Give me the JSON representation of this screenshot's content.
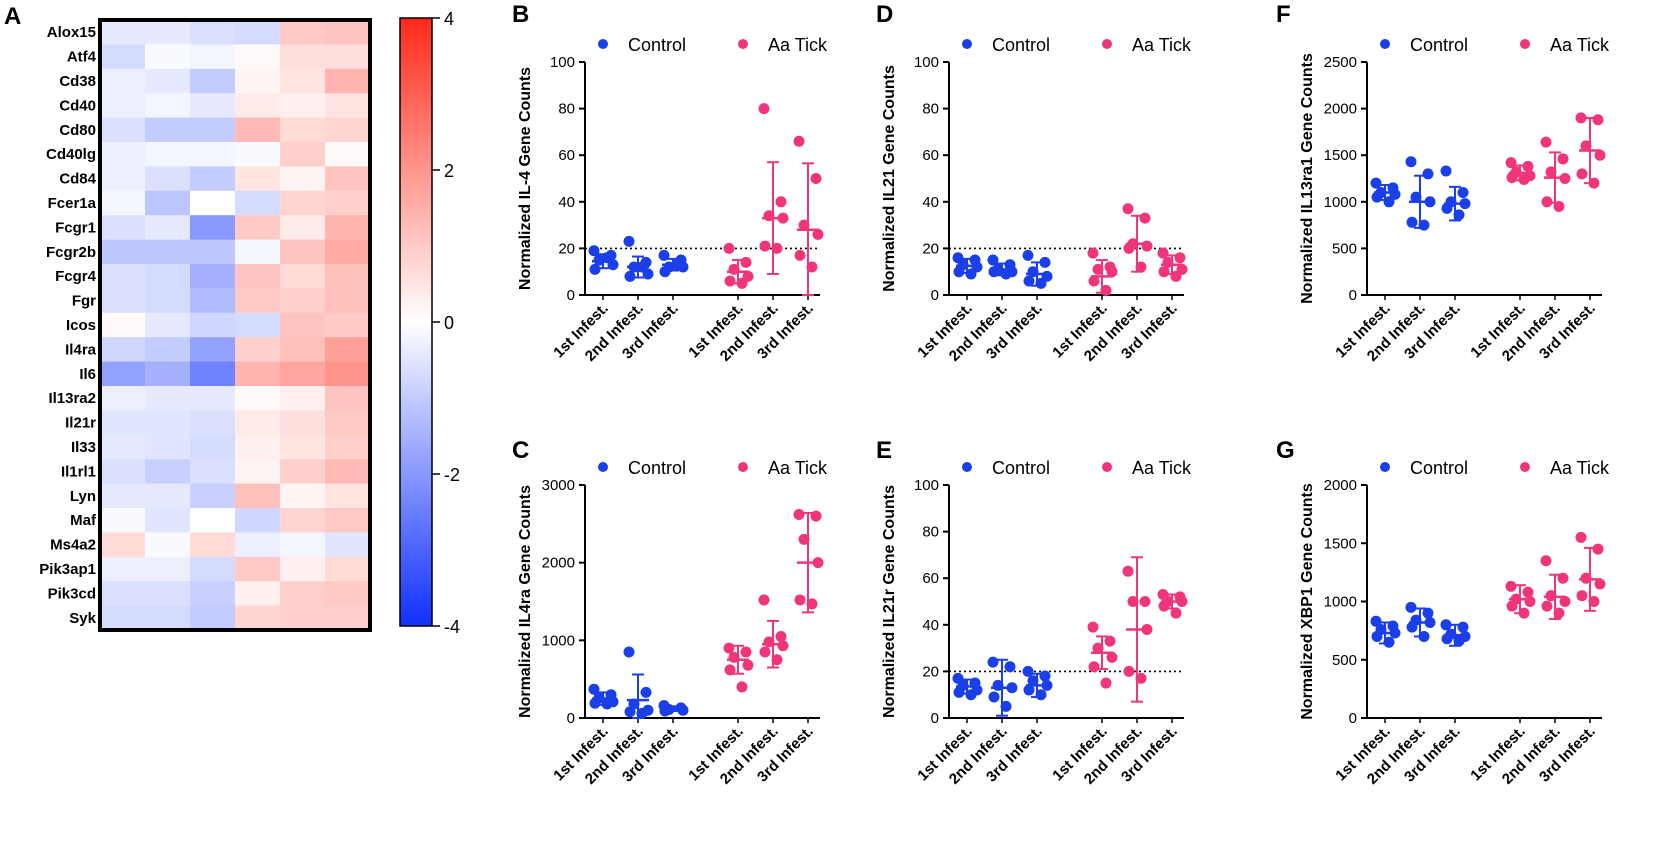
{
  "colors": {
    "control": "#1a3ee8",
    "tick": "#f0357a",
    "high": "#ff2a1a",
    "mid": "#ffffff",
    "low": "#1030ff"
  },
  "chart_data": [
    {
      "id": "A",
      "type": "heatmap",
      "panel_label": "A",
      "genes": [
        "Alox15",
        "Atf4",
        "Cd38",
        "Cd40",
        "Cd80",
        "Cd40lg",
        "Cd84",
        "Fcer1a",
        "Fcgr1",
        "Fcgr2b",
        "Fcgr4",
        "Fgr",
        "Icos",
        "Il4ra",
        "Il6",
        "Il13ra2",
        "Il21r",
        "Il33",
        "Il1rl1",
        "Lyn",
        "Maf",
        "Ms4a2",
        "Pik3ap1",
        "Pik3cd",
        "Syk"
      ],
      "values": [
        [
          -0.4,
          -0.4,
          -0.6,
          -0.7,
          1.0,
          1.1
        ],
        [
          -0.7,
          -0.1,
          -0.2,
          0.1,
          0.6,
          0.6
        ],
        [
          -0.3,
          -0.4,
          -1.0,
          0.2,
          0.5,
          1.4
        ],
        [
          -0.3,
          -0.2,
          -0.4,
          0.4,
          0.3,
          0.5
        ],
        [
          -0.6,
          -1.0,
          -1.0,
          1.3,
          0.7,
          0.8
        ],
        [
          -0.3,
          -0.2,
          -0.2,
          -0.1,
          0.9,
          0.1
        ],
        [
          -0.3,
          -0.6,
          -1.0,
          0.5,
          0.2,
          1.1
        ],
        [
          -0.2,
          -1.1,
          0.0,
          -0.7,
          0.8,
          0.9
        ],
        [
          -0.6,
          -0.4,
          -2.0,
          1.0,
          0.4,
          1.4
        ],
        [
          -1.1,
          -1.1,
          -1.1,
          -0.2,
          1.1,
          1.6
        ],
        [
          -0.6,
          -0.7,
          -1.5,
          1.1,
          0.7,
          1.2
        ],
        [
          -0.6,
          -0.7,
          -1.3,
          1.0,
          0.9,
          1.2
        ],
        [
          0.1,
          -0.4,
          -0.8,
          -0.7,
          1.1,
          1.0
        ],
        [
          -0.8,
          -1.0,
          -1.8,
          0.9,
          1.2,
          1.8
        ],
        [
          -1.8,
          -1.5,
          -2.4,
          1.4,
          1.7,
          2.0
        ],
        [
          -0.3,
          -0.4,
          -0.4,
          0.1,
          0.3,
          1.1
        ],
        [
          -0.5,
          -0.5,
          -0.6,
          0.4,
          0.6,
          1.0
        ],
        [
          -0.4,
          -0.5,
          -0.7,
          0.3,
          0.5,
          0.9
        ],
        [
          -0.6,
          -0.9,
          -0.6,
          0.2,
          0.9,
          1.3
        ],
        [
          -0.4,
          -0.4,
          -0.9,
          1.2,
          0.2,
          0.5
        ],
        [
          -0.1,
          -0.5,
          0.0,
          -0.8,
          0.8,
          1.0
        ],
        [
          0.7,
          -0.1,
          0.7,
          -0.3,
          -0.2,
          -0.5
        ],
        [
          -0.3,
          -0.3,
          -0.7,
          1.0,
          0.3,
          0.7
        ],
        [
          -0.6,
          -0.6,
          -0.9,
          0.3,
          0.9,
          1.0
        ],
        [
          -0.7,
          -0.7,
          -1.0,
          0.8,
          0.9,
          0.9
        ]
      ],
      "colorbar": {
        "min": -4,
        "max": 4,
        "ticks": [
          "4",
          "2",
          "0",
          "-2",
          "-4"
        ]
      }
    },
    {
      "id": "B",
      "panel_label": "B",
      "type": "scatter",
      "ylabel": "Normalized IL-4 Gene Counts",
      "ylim": [
        0,
        100
      ],
      "yticks": [
        "0",
        "20",
        "40",
        "60",
        "80",
        "100"
      ],
      "ytick_values": [
        0,
        20,
        40,
        60,
        80,
        100
      ],
      "threshold": 20,
      "categories": [
        "1st Infest.",
        "2nd Infest.",
        "3rd Infest.",
        "1st Infest.",
        "2nd Infest.",
        "3rd Infest."
      ],
      "legend": [
        "Control",
        "Aa Tick"
      ],
      "groups": [
        {
          "series": "Control",
          "points": [
            19,
            17,
            15,
            13,
            11,
            16
          ],
          "mean": 14.5,
          "sd": 3
        },
        {
          "series": "Control",
          "points": [
            23,
            14,
            12,
            9,
            8,
            12
          ],
          "mean": 12,
          "sd": 4.5
        },
        {
          "series": "Control",
          "points": [
            17,
            15,
            12,
            12,
            10,
            13
          ],
          "mean": 13,
          "sd": 2.5
        },
        {
          "series": "Aa Tick",
          "points": [
            20,
            14,
            11,
            8,
            6,
            5
          ],
          "mean": 10,
          "sd": 5
        },
        {
          "series": "Aa Tick",
          "points": [
            80,
            40,
            34,
            33,
            21,
            20
          ],
          "mean": 33,
          "sd": 24
        },
        {
          "series": "Aa Tick",
          "points": [
            66,
            50,
            30,
            26,
            17,
            12
          ],
          "mean": 28,
          "sd": 28.5
        }
      ]
    },
    {
      "id": "C",
      "panel_label": "C",
      "type": "scatter",
      "ylabel": "Normalized IL4ra Gene Counts",
      "ylim": [
        0,
        3000
      ],
      "yticks": [
        "0",
        "1000",
        "2000",
        "3000"
      ],
      "ytick_values": [
        0,
        1000,
        2000,
        3000
      ],
      "categories": [
        "1st Infest.",
        "2nd Infest.",
        "3rd Infest.",
        "1st Infest.",
        "2nd Infest.",
        "3rd Infest."
      ],
      "legend": [
        "Control",
        "Aa Tick"
      ],
      "groups": [
        {
          "series": "Control",
          "points": [
            370,
            300,
            260,
            210,
            190,
            180
          ],
          "mean": 250,
          "sd": 80
        },
        {
          "series": "Control",
          "points": [
            850,
            330,
            180,
            100,
            80,
            60
          ],
          "mean": 230,
          "sd": 330
        },
        {
          "series": "Control",
          "points": [
            160,
            130,
            110,
            100,
            90
          ],
          "mean": 120,
          "sd": 30
        },
        {
          "series": "Aa Tick",
          "points": [
            900,
            850,
            780,
            680,
            620,
            400
          ],
          "mean": 750,
          "sd": 180
        },
        {
          "series": "Aa Tick",
          "points": [
            1520,
            1050,
            980,
            930,
            850,
            750
          ],
          "mean": 950,
          "sd": 300
        },
        {
          "series": "Aa Tick",
          "points": [
            2620,
            2600,
            2300,
            2000,
            1520,
            1470
          ],
          "mean": 2000,
          "sd": 640
        }
      ]
    },
    {
      "id": "D",
      "panel_label": "D",
      "type": "scatter",
      "ylabel": "Normalized IL21 Gene Counts",
      "ylim": [
        0,
        100
      ],
      "yticks": [
        "0",
        "20",
        "40",
        "60",
        "80",
        "100"
      ],
      "ytick_values": [
        0,
        20,
        40,
        60,
        80,
        100
      ],
      "threshold": 20,
      "categories": [
        "1st Infest.",
        "2nd Infest.",
        "3rd Infest.",
        "1st Infest.",
        "2nd Infest.",
        "3rd Infest."
      ],
      "legend": [
        "Control",
        "Aa Tick"
      ],
      "groups": [
        {
          "series": "Control",
          "points": [
            16,
            15,
            13,
            12,
            10,
            9
          ],
          "mean": 12.5,
          "sd": 3
        },
        {
          "series": "Control",
          "points": [
            15,
            13,
            11,
            10,
            10,
            9
          ],
          "mean": 11,
          "sd": 2.5
        },
        {
          "series": "Control",
          "points": [
            17,
            14,
            10,
            8,
            6,
            5
          ],
          "mean": 9,
          "sd": 5
        },
        {
          "series": "Aa Tick",
          "points": [
            18,
            12,
            11,
            10,
            6,
            2
          ],
          "mean": 8,
          "sd": 7
        },
        {
          "series": "Aa Tick",
          "points": [
            37,
            33,
            22,
            21,
            20,
            12
          ],
          "mean": 22,
          "sd": 12
        },
        {
          "series": "Aa Tick",
          "points": [
            18,
            16,
            14,
            11,
            10,
            8
          ],
          "mean": 13,
          "sd": 4
        }
      ]
    },
    {
      "id": "E",
      "panel_label": "E",
      "type": "scatter",
      "ylabel": "Normalized IL21r Gene Counts",
      "ylim": [
        0,
        100
      ],
      "yticks": [
        "0",
        "20",
        "40",
        "60",
        "80",
        "100"
      ],
      "ytick_values": [
        0,
        20,
        40,
        60,
        80,
        100
      ],
      "threshold": 20,
      "categories": [
        "1st Infest.",
        "2nd Infest.",
        "3rd Infest.",
        "1st Infest.",
        "2nd Infest.",
        "3rd Infest."
      ],
      "legend": [
        "Control",
        "Aa Tick"
      ],
      "groups": [
        {
          "series": "Control",
          "points": [
            17,
            15,
            14,
            12,
            11,
            10
          ],
          "mean": 13.5,
          "sd": 3
        },
        {
          "series": "Control",
          "points": [
            24,
            22,
            14,
            13,
            9,
            5
          ],
          "mean": 13,
          "sd": 12
        },
        {
          "series": "Control",
          "points": [
            20,
            18,
            16,
            14,
            12,
            10
          ],
          "mean": 14,
          "sd": 5
        },
        {
          "series": "Aa Tick",
          "points": [
            39,
            33,
            30,
            26,
            22,
            15
          ],
          "mean": 28,
          "sd": 7
        },
        {
          "series": "Aa Tick",
          "points": [
            63,
            50,
            50,
            38,
            20,
            17
          ],
          "mean": 38,
          "sd": 31
        },
        {
          "series": "Aa Tick",
          "points": [
            53,
            52,
            50,
            50,
            48,
            45
          ],
          "mean": 50,
          "sd": 3
        }
      ]
    },
    {
      "id": "F",
      "panel_label": "F",
      "type": "scatter",
      "ylabel": "Normalized IL13ra1 Gene Counts",
      "ylim": [
        0,
        2500
      ],
      "yticks": [
        "0",
        "500",
        "1000",
        "1500",
        "2000",
        "2500"
      ],
      "ytick_values": [
        0,
        500,
        1000,
        1500,
        2000,
        2500
      ],
      "categories": [
        "1st Infest.",
        "2nd Infest.",
        "3rd Infest.",
        "1st Infest.",
        "2nd Infest.",
        "3rd Infest."
      ],
      "legend": [
        "Control",
        "Aa Tick"
      ],
      "groups": [
        {
          "series": "Control",
          "points": [
            1200,
            1150,
            1100,
            1080,
            1050,
            1000
          ],
          "mean": 1100,
          "sd": 80
        },
        {
          "series": "Control",
          "points": [
            1430,
            1300,
            1050,
            1000,
            780,
            750
          ],
          "mean": 1000,
          "sd": 280
        },
        {
          "series": "Control",
          "points": [
            1330,
            1100,
            1000,
            980,
            930,
            860
          ],
          "mean": 980,
          "sd": 180
        },
        {
          "series": "Aa Tick",
          "points": [
            1420,
            1380,
            1320,
            1280,
            1260,
            1240
          ],
          "mean": 1310,
          "sd": 80
        },
        {
          "series": "Aa Tick",
          "points": [
            1640,
            1460,
            1320,
            1250,
            1000,
            950
          ],
          "mean": 1260,
          "sd": 270
        },
        {
          "series": "Aa Tick",
          "points": [
            1900,
            1880,
            1600,
            1500,
            1300,
            1200
          ],
          "mean": 1550,
          "sd": 350
        }
      ]
    },
    {
      "id": "G",
      "panel_label": "G",
      "type": "scatter",
      "ylabel": "Normalized XBP1 Gene Counts",
      "ylim": [
        0,
        2000
      ],
      "yticks": [
        "0",
        "500",
        "1000",
        "1500",
        "2000"
      ],
      "ytick_values": [
        0,
        500,
        1000,
        1500,
        2000
      ],
      "categories": [
        "1st Infest.",
        "2nd Infest.",
        "3rd Infest.",
        "1st Infest.",
        "2nd Infest.",
        "3rd Infest."
      ],
      "legend": [
        "Control",
        "Aa Tick"
      ],
      "groups": [
        {
          "series": "Control",
          "points": [
            830,
            790,
            760,
            730,
            700,
            650
          ],
          "mean": 730,
          "sd": 90
        },
        {
          "series": "Control",
          "points": [
            950,
            900,
            840,
            820,
            780,
            700
          ],
          "mean": 820,
          "sd": 120
        },
        {
          "series": "Control",
          "points": [
            800,
            780,
            720,
            700,
            680,
            660
          ],
          "mean": 710,
          "sd": 90
        },
        {
          "series": "Aa Tick",
          "points": [
            1130,
            1080,
            1020,
            1000,
            960,
            900
          ],
          "mean": 1020,
          "sd": 120
        },
        {
          "series": "Aa Tick",
          "points": [
            1350,
            1200,
            1050,
            1000,
            960,
            900
          ],
          "mean": 1040,
          "sd": 190
        },
        {
          "series": "Aa Tick",
          "points": [
            1550,
            1450,
            1200,
            1150,
            1050,
            1000
          ],
          "mean": 1190,
          "sd": 270
        }
      ]
    }
  ]
}
